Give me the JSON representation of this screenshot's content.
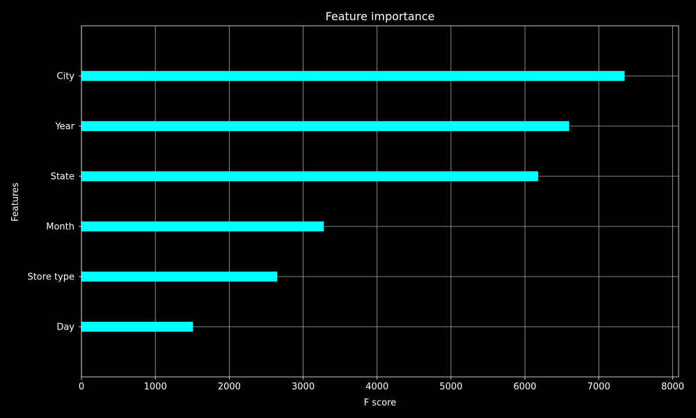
{
  "colors": {
    "background": "#000000",
    "bar": "#00ffff",
    "grid": "#b0b0b0",
    "axis": "#ffffff",
    "text": "#ffffff"
  },
  "chart_data": {
    "type": "bar",
    "orientation": "horizontal",
    "title": "Feature importance",
    "xlabel": "F score",
    "ylabel": "Features",
    "categories": [
      "Day",
      "Store type",
      "Month",
      "State",
      "Year",
      "City"
    ],
    "values": [
      1510,
      2650,
      3280,
      6180,
      6600,
      7350
    ],
    "xlim": [
      0,
      8080
    ],
    "xticks": [
      0,
      1000,
      2000,
      3000,
      4000,
      5000,
      6000,
      7000,
      8000
    ],
    "xtick_labels": [
      "0",
      "1000",
      "2000",
      "3000",
      "4000",
      "5000",
      "6000",
      "7000",
      "8000"
    ],
    "grid": true
  }
}
